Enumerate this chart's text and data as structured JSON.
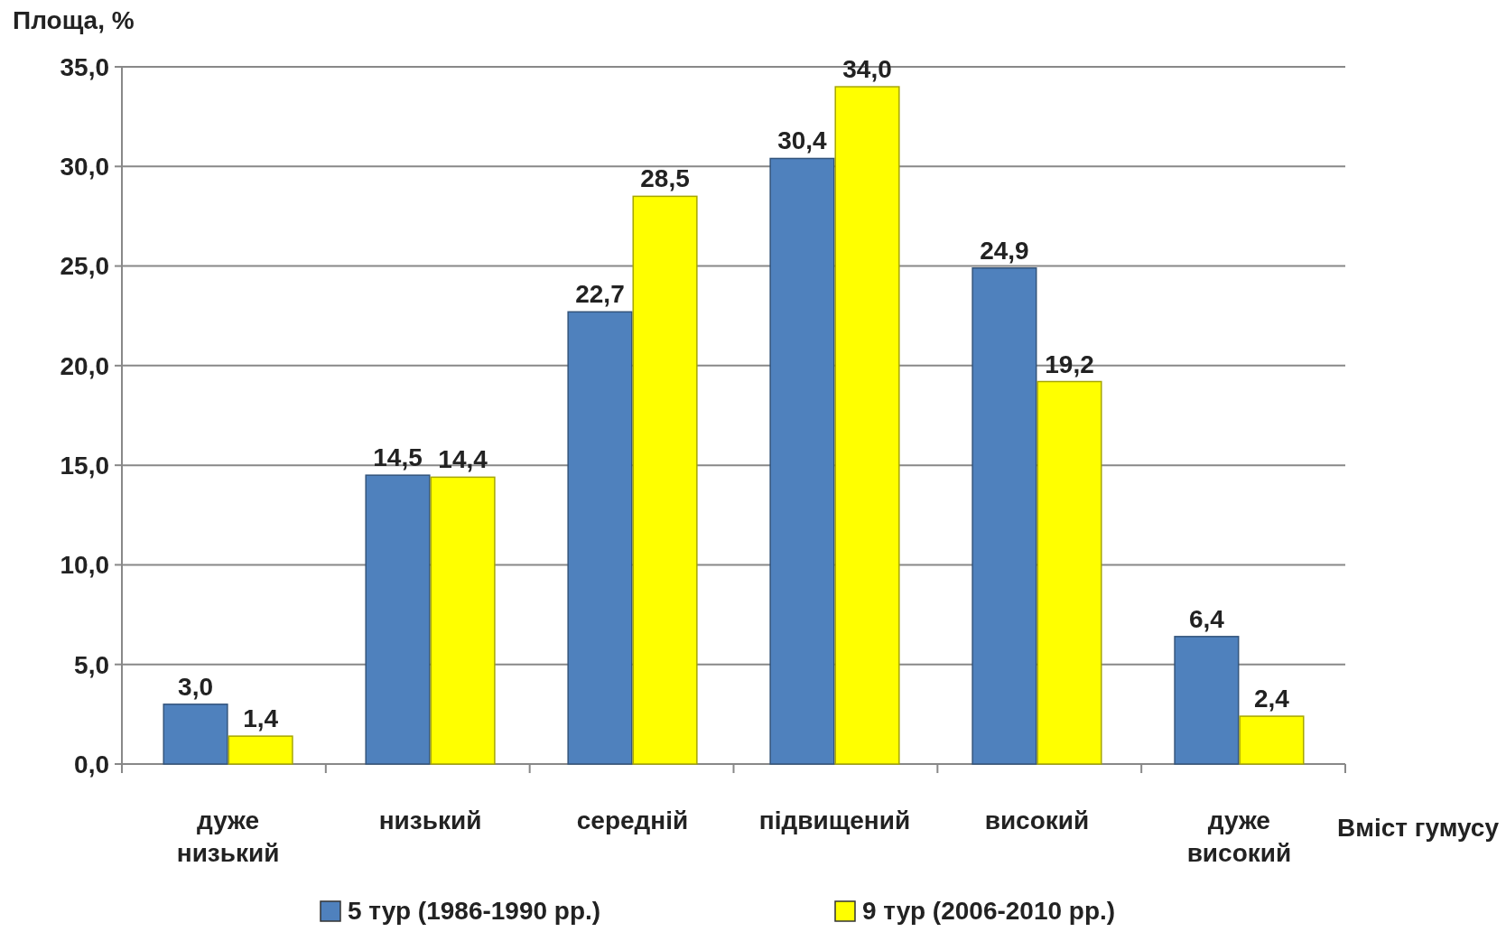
{
  "chart_data": {
    "type": "bar",
    "ylabel": "Площа, %",
    "xlabel": "Вміст гумусу",
    "categories": [
      "дуже низький",
      "низький",
      "середній",
      "підвищений",
      "високий",
      "дуже високий"
    ],
    "series": [
      {
        "name": "5 тур (1986-1990 рр.)",
        "color": "#4f81bd",
        "values": [
          3.0,
          14.5,
          22.7,
          30.4,
          24.9,
          6.4
        ],
        "value_labels": [
          "3,0",
          "14,5",
          "22,7",
          "30,4",
          "24,9",
          "6,4"
        ]
      },
      {
        "name": "9 тур (2006-2010 рр.)",
        "color": "#ffff00",
        "values": [
          1.4,
          14.4,
          28.5,
          34.0,
          19.2,
          2.4
        ],
        "value_labels": [
          "1,4",
          "14,4",
          "28,5",
          "34,0",
          "19,2",
          "2,4"
        ]
      }
    ],
    "ylim": [
      0,
      35
    ],
    "yticks": [
      {
        "value": 0,
        "label": "0,0"
      },
      {
        "value": 5,
        "label": "5,0"
      },
      {
        "value": 10,
        "label": "10,0"
      },
      {
        "value": 15,
        "label": "15,0"
      },
      {
        "value": 20,
        "label": "20,0"
      },
      {
        "value": 25,
        "label": "25,0"
      },
      {
        "value": 30,
        "label": "30,0"
      },
      {
        "value": 35,
        "label": "35,0"
      }
    ],
    "grid": "y",
    "legend": "bottom"
  }
}
